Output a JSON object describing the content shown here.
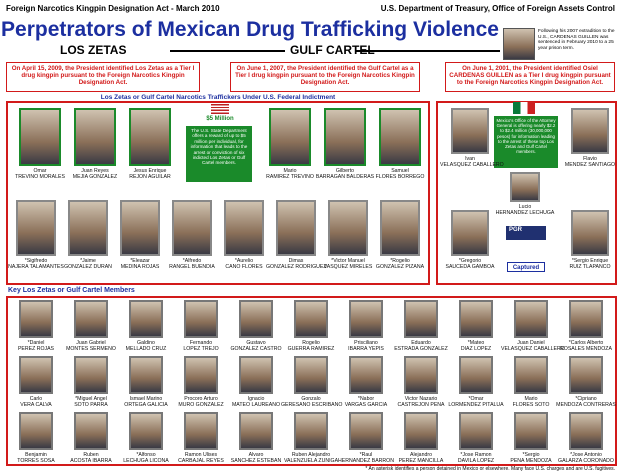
{
  "header": {
    "act": "Foreign Narcotics Kingpin Designation Act - March 2010",
    "department": "U.S. Department of Treasury, Office of Foreign Assets Control",
    "title": "Perpetrators of Mexican Drug Trafficking Violence",
    "left_group": "LOS ZETAS",
    "right_group": "GULF CARTEL",
    "extradition_note": "Following his 2007 extradition to the U.S., CARDENAS GUILLEN was sentenced in February 2010 to a 25 year prison term."
  },
  "notices": [
    "On April 15, 2009, the President identified Los Zetas as a Tier I drug kingpin pursuant to the Foreign Narcotics Kingpin Designation Act.",
    "On June 1, 2007, the President identified the Gulf Cartel as a Tier I drug kingpin pursuant to the Foreign Narcotics Kingpin Designation Act.",
    "On June 1, 2001, the President identified Osiel CARDENAS GUILLEN as a Tier I drug kingpin pursuant to the Foreign Narcotics Kingpin Designation Act."
  ],
  "indicted": {
    "heading": "Los Zetas or Gulf Cartel Narcotics Traffickers Under U.S. Federal Indictment",
    "reward_amount": "$5 Million",
    "reward_text": "The U.S. State Department offers a reward of up to $5 million per individual, for information that leads to the arrest or conviction of six indicted Los Zetas or Gulf Cartel members.",
    "row1": [
      {
        "first": "Omar",
        "last": "TREVINO MORALES"
      },
      {
        "first": "Juan Reyes",
        "last": "MEJIA GONZALEZ"
      },
      {
        "first": "Jesus Enrique",
        "last": "REJON AGUILAR"
      },
      {
        "first": "Mario",
        "last": "RAMIREZ TREVINO"
      },
      {
        "first": "Gilberto",
        "last": "BARRAGAN BALDERAS"
      },
      {
        "first": "Samuel",
        "last": "FLORES BORREGO"
      }
    ],
    "row2": [
      {
        "first": "*Sigifredo",
        "last": "NAJERA TALAMANTES"
      },
      {
        "first": "*Jaime",
        "last": "GONZALEZ DURAN"
      },
      {
        "first": "*Eleazar",
        "last": "MEDINA ROJAS"
      },
      {
        "first": "*Alfredo",
        "last": "RANGEL BUENDIA"
      },
      {
        "first": "*Aurelio",
        "last": "CANO FLORES"
      },
      {
        "first": "Dimas",
        "last": "GONZALEZ RODRIGUEZ"
      },
      {
        "first": "*Victor Manuel",
        "last": "VASQUEZ MIRELES"
      },
      {
        "first": "*Rogelio",
        "last": "GONZALEZ PIZANA"
      }
    ]
  },
  "mexico": {
    "reward_text": "Mexico's Office of the Attorney General is offering nearly $2.2 to $2.4 million (30,000,000 pesos) for information leading to the arrest of these top Los Zetas and Gulf Cartel members.",
    "pgr": "PGR",
    "captured": "Captured",
    "members": [
      {
        "first": "Ivan",
        "last": "VELASQUEZ CABALLERO"
      },
      {
        "first": "Flavio",
        "last": "MENDEZ SANTIAGO"
      },
      {
        "first": "Lucio",
        "last": "HERNANDEZ LECHUGA"
      },
      {
        "first": "*Gregorio",
        "last": "SAUCEDA GAMBOA"
      },
      {
        "first": "*Sergio Enrique",
        "last": "RUIZ TLAPANCO"
      }
    ]
  },
  "key_members": {
    "heading": "Key Los Zetas or Gulf Cartel Members",
    "rows": [
      [
        {
          "first": "*Daniel",
          "last": "PEREZ ROJAS"
        },
        {
          "first": "Juan Gabriel",
          "last": "MONTES SERMENO"
        },
        {
          "first": "Galdino",
          "last": "MELLADO CRUZ"
        },
        {
          "first": "Fernando",
          "last": "LOPEZ TREJO"
        },
        {
          "first": "Gustavo",
          "last": "GONZALEZ CASTRO"
        },
        {
          "first": "Rogelio",
          "last": "GUERRA RAMIREZ"
        },
        {
          "first": "Prisciliano",
          "last": "IBARRA YEPIS"
        },
        {
          "first": "Eduardo",
          "last": "ESTRADA GONZALEZ"
        },
        {
          "first": "*Mateo",
          "last": "DIAZ LOPEZ"
        },
        {
          "first": "Juan Daniel",
          "last": "VELASQUEZ CABALLERO"
        },
        {
          "first": "*Carlos Alberto",
          "last": "ROSALES MENDOZA"
        }
      ],
      [
        {
          "first": "Carlo",
          "last": "VERA CALVA"
        },
        {
          "first": "*Miguel Angel",
          "last": "SOTO PARRA"
        },
        {
          "first": "Ismael Marino",
          "last": "ORTEGA GALICIA"
        },
        {
          "first": "Procoro Arturo",
          "last": "MURO GONZALEZ"
        },
        {
          "first": "Ignacio",
          "last": "MATEO LAUREANO"
        },
        {
          "first": "Gonzalo",
          "last": "GERESANO ESCRIBANO"
        },
        {
          "first": "*Nabor",
          "last": "VARGAS GARCIA"
        },
        {
          "first": "Victor Nazario",
          "last": "CASTREJON PENA"
        },
        {
          "first": "*Omar",
          "last": "LORMENDEZ PITALUA"
        },
        {
          "first": "Mario",
          "last": "FLORES SOTO"
        },
        {
          "first": "*Cipriano",
          "last": "MENDOZA CONTRERAS"
        }
      ],
      [
        {
          "first": "Benjamin",
          "last": "TORRES SOSA"
        },
        {
          "first": "Ruben",
          "last": "ACOSTA IBARRA"
        },
        {
          "first": "*Alfonso",
          "last": "LECHUGA LICONA"
        },
        {
          "first": "Ramon Ulises",
          "last": "CARBAJAL REYES"
        },
        {
          "first": "Alvaro",
          "last": "SANCHEZ ESTEBAN"
        },
        {
          "first": "Ruben Alejandro",
          "last": "VALENZUELA ZUNIGA"
        },
        {
          "first": "*Raul",
          "last": "HERNANDEZ BARRON"
        },
        {
          "first": "Alejandro",
          "last": "PEREZ MANCILLA"
        },
        {
          "first": "*Jose Ramon",
          "last": "DAVILA LOPEZ"
        },
        {
          "first": "*Sergio",
          "last": "PENA MENDOZA"
        },
        {
          "first": "*Jose Antonio",
          "last": "GALARZA CORONADO"
        }
      ]
    ]
  },
  "footnote": "* An asterisk identifies a person detained in Mexico or elsewhere. Many face U.S. charges and are U.S. fugitives."
}
